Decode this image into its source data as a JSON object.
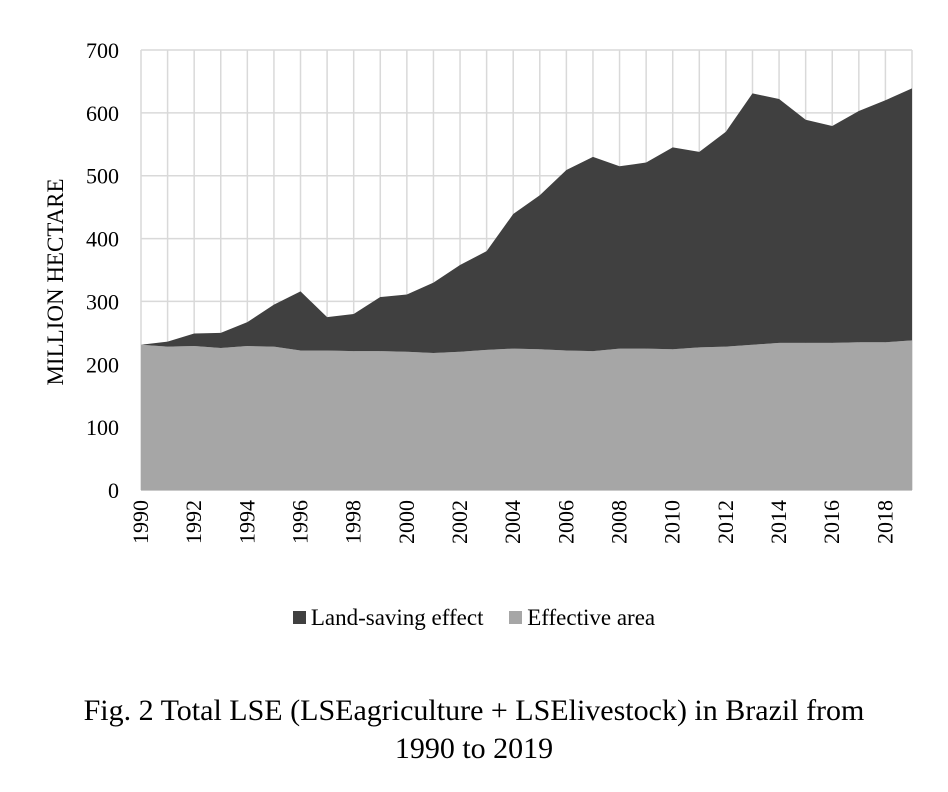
{
  "chart_data": {
    "type": "area",
    "stacked": true,
    "x": [
      1990,
      1991,
      1992,
      1993,
      1994,
      1995,
      1996,
      1997,
      1998,
      1999,
      2000,
      2001,
      2002,
      2003,
      2004,
      2005,
      2006,
      2007,
      2008,
      2009,
      2010,
      2011,
      2012,
      2013,
      2014,
      2015,
      2016,
      2017,
      2018,
      2019
    ],
    "x_tick_labels": [
      "1990",
      "1992",
      "1994",
      "1996",
      "1998",
      "2000",
      "2002",
      "2004",
      "2006",
      "2008",
      "2010",
      "2012",
      "2014",
      "2016",
      "2018"
    ],
    "ylabel": "MILLION HECTARE",
    "ylim": [
      0,
      700
    ],
    "y_ticks": [
      0,
      100,
      200,
      300,
      400,
      500,
      600,
      700
    ],
    "grid": true,
    "series": [
      {
        "name": "Effective area",
        "color": "#a6a6a6",
        "values": [
          231,
          228,
          229,
          226,
          229,
          228,
          222,
          222,
          221,
          221,
          220,
          218,
          220,
          223,
          225,
          224,
          222,
          221,
          225,
          225,
          224,
          227,
          228,
          231,
          234,
          234,
          234,
          235,
          235,
          238
        ]
      },
      {
        "name": "Land-saving effect",
        "color": "#404040",
        "values": [
          0,
          8,
          20,
          24,
          38,
          67,
          94,
          53,
          59,
          86,
          91,
          112,
          138,
          157,
          214,
          245,
          287,
          309,
          290,
          296,
          321,
          311,
          342,
          400,
          388,
          355,
          345,
          368,
          385,
          401
        ]
      }
    ],
    "legend": [
      {
        "name": "Land-saving effect",
        "color": "#404040"
      },
      {
        "name": "Effective area",
        "color": "#a6a6a6"
      }
    ]
  },
  "caption": {
    "line1": "Fig. 2 Total LSE (LSEagriculture + LSElivestock) in Brazil from",
    "line2": "1990 to 2019"
  }
}
